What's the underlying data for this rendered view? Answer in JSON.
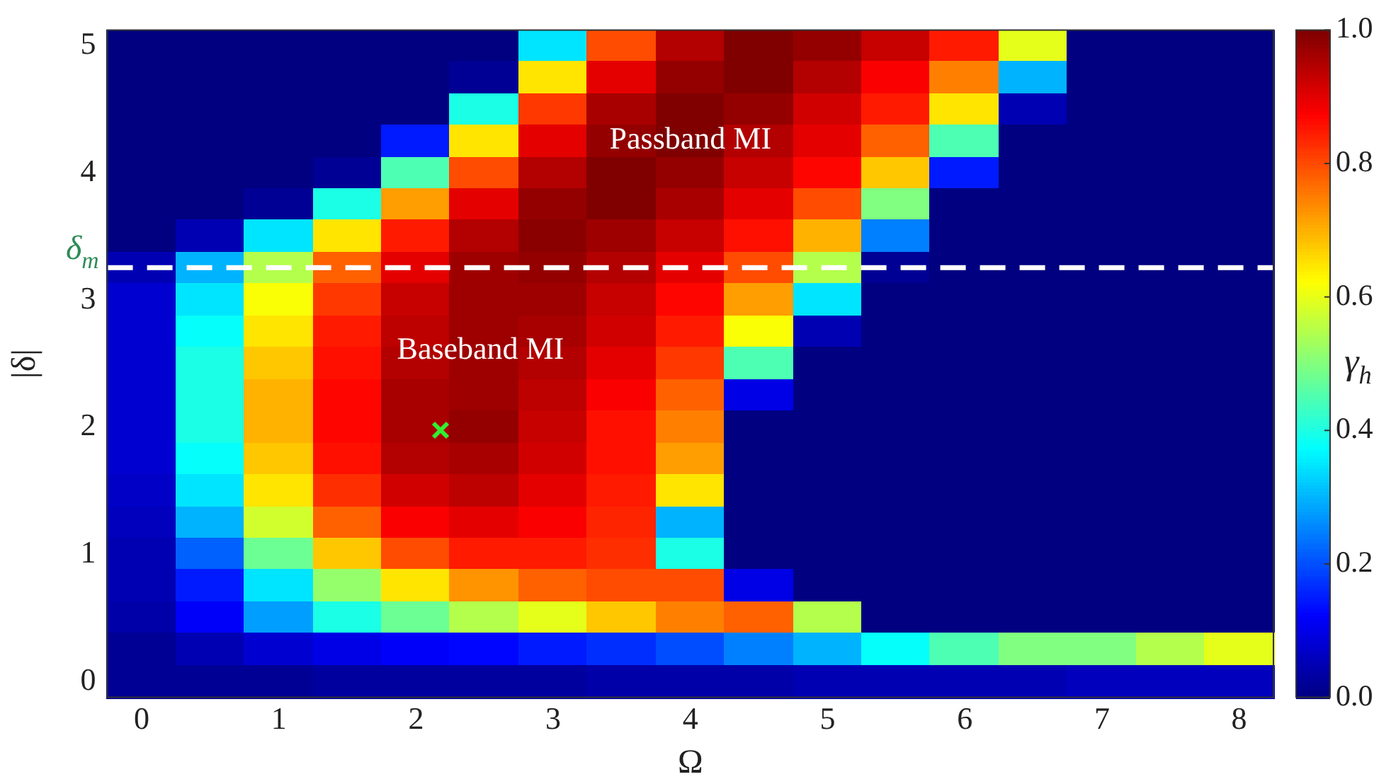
{
  "chart_data": {
    "type": "heatmap",
    "xlabel": "Ω",
    "ylabel": "|δ|",
    "clabel": "γ$_{h}$",
    "categories": [
      "0",
      null,
      "1",
      null,
      "2",
      null,
      "3",
      null,
      "4",
      null,
      "5",
      null,
      "6",
      null,
      "7",
      null,
      "8"
    ],
    "y_categories": [
      "5",
      null,
      null,
      null,
      "4",
      null,
      null,
      null,
      "3",
      null,
      null,
      null,
      "2",
      null,
      null,
      null,
      "1",
      null,
      null,
      null,
      "0"
    ],
    "clim": [
      0,
      1
    ],
    "cticks": [
      {
        "value": 0,
        "label": "0.0"
      },
      {
        "value": 0.2,
        "label": "0.2"
      },
      {
        "value": 0.4,
        "label": "0.4"
      },
      {
        "value": 0.6,
        "label": "0.6"
      },
      {
        "value": 0.8,
        "label": "0.8"
      },
      {
        "value": 1,
        "label": "1.0"
      }
    ],
    "cells": [
      [
        0,
        0,
        0,
        0,
        0,
        0,
        0.35,
        0.8,
        0.95,
        1.0,
        0.98,
        0.93,
        0.85,
        0.6,
        0,
        0,
        0
      ],
      [
        0,
        0,
        0,
        0,
        0,
        0.02,
        0.65,
        0.9,
        0.98,
        1.0,
        0.95,
        0.88,
        0.75,
        0.3,
        0,
        0,
        0
      ],
      [
        0,
        0,
        0,
        0,
        0,
        0.4,
        0.82,
        0.96,
        1.0,
        0.98,
        0.92,
        0.85,
        0.65,
        0.05,
        0,
        0,
        0
      ],
      [
        0,
        0,
        0,
        0,
        0.15,
        0.65,
        0.9,
        0.98,
        1.0,
        0.95,
        0.9,
        0.78,
        0.45,
        0,
        0,
        0,
        0
      ],
      [
        0,
        0,
        0,
        0.02,
        0.45,
        0.8,
        0.95,
        1.0,
        0.98,
        0.93,
        0.87,
        0.68,
        0.15,
        0,
        0,
        0,
        0
      ],
      [
        0,
        0,
        0.02,
        0.4,
        0.72,
        0.9,
        0.98,
        1.0,
        0.96,
        0.9,
        0.8,
        0.5,
        0,
        0,
        0,
        0,
        0
      ],
      [
        0,
        0.05,
        0.35,
        0.65,
        0.85,
        0.95,
        0.99,
        0.97,
        0.93,
        0.86,
        0.7,
        0.25,
        0,
        0,
        0,
        0,
        0
      ],
      [
        0.05,
        0.3,
        0.55,
        0.78,
        0.9,
        0.97,
        0.98,
        0.95,
        0.9,
        0.8,
        0.55,
        0.02,
        0,
        0,
        0,
        0,
        0
      ],
      [
        0.08,
        0.35,
        0.62,
        0.82,
        0.93,
        0.97,
        0.97,
        0.93,
        0.87,
        0.72,
        0.35,
        0,
        0,
        0,
        0,
        0,
        0
      ],
      [
        0.08,
        0.38,
        0.65,
        0.85,
        0.94,
        0.97,
        0.96,
        0.92,
        0.85,
        0.62,
        0.05,
        0,
        0,
        0,
        0,
        0,
        0
      ],
      [
        0.08,
        0.4,
        0.68,
        0.86,
        0.95,
        0.97,
        0.95,
        0.9,
        0.82,
        0.45,
        0,
        0,
        0,
        0,
        0,
        0,
        0
      ],
      [
        0.08,
        0.4,
        0.7,
        0.87,
        0.96,
        0.97,
        0.94,
        0.88,
        0.78,
        0.1,
        0,
        0,
        0,
        0,
        0,
        0,
        0
      ],
      [
        0.08,
        0.4,
        0.7,
        0.87,
        0.96,
        0.98,
        0.93,
        0.86,
        0.75,
        0,
        0,
        0,
        0,
        0,
        0,
        0,
        0
      ],
      [
        0.08,
        0.38,
        0.68,
        0.86,
        0.95,
        0.96,
        0.92,
        0.86,
        0.72,
        0,
        0,
        0,
        0,
        0,
        0,
        0,
        0
      ],
      [
        0.07,
        0.35,
        0.65,
        0.83,
        0.92,
        0.94,
        0.9,
        0.85,
        0.65,
        0,
        0,
        0,
        0,
        0,
        0,
        0,
        0
      ],
      [
        0.06,
        0.3,
        0.58,
        0.78,
        0.88,
        0.9,
        0.88,
        0.84,
        0.3,
        0,
        0,
        0,
        0,
        0,
        0,
        0,
        0
      ],
      [
        0.05,
        0.22,
        0.48,
        0.68,
        0.8,
        0.85,
        0.85,
        0.83,
        0.4,
        0,
        0,
        0,
        0,
        0,
        0,
        0,
        0
      ],
      [
        0.05,
        0.15,
        0.35,
        0.52,
        0.65,
        0.73,
        0.78,
        0.8,
        0.8,
        0.1,
        0,
        0,
        0,
        0,
        0,
        0,
        0
      ],
      [
        0.04,
        0.12,
        0.28,
        0.4,
        0.48,
        0.55,
        0.6,
        0.68,
        0.75,
        0.78,
        0.55,
        0,
        0,
        0,
        0,
        0,
        0
      ],
      [
        0.02,
        0.05,
        0.08,
        0.1,
        0.12,
        0.13,
        0.15,
        0.17,
        0.2,
        0.25,
        0.3,
        0.38,
        0.45,
        0.5,
        0.5,
        0.55,
        0.6
      ],
      [
        0.02,
        0.02,
        0.02,
        0.03,
        0.03,
        0.03,
        0.03,
        0.04,
        0.04,
        0.04,
        0.05,
        0.05,
        0.05,
        0.05,
        0.06,
        0.06,
        0.06
      ]
    ],
    "annotations": [
      "Passband MI",
      "Baseband MI",
      "δ$_{m}$"
    ]
  }
}
